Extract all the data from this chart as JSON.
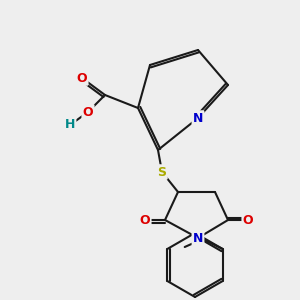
{
  "background_color": "#eeeeee",
  "bond_color": "#1a1a1a",
  "bond_width": 1.5,
  "atom_colors": {
    "N": "#0000cc",
    "O": "#dd0000",
    "S": "#aaaa00",
    "H": "#008888",
    "C": "#1a1a1a"
  },
  "font_size": 9
}
